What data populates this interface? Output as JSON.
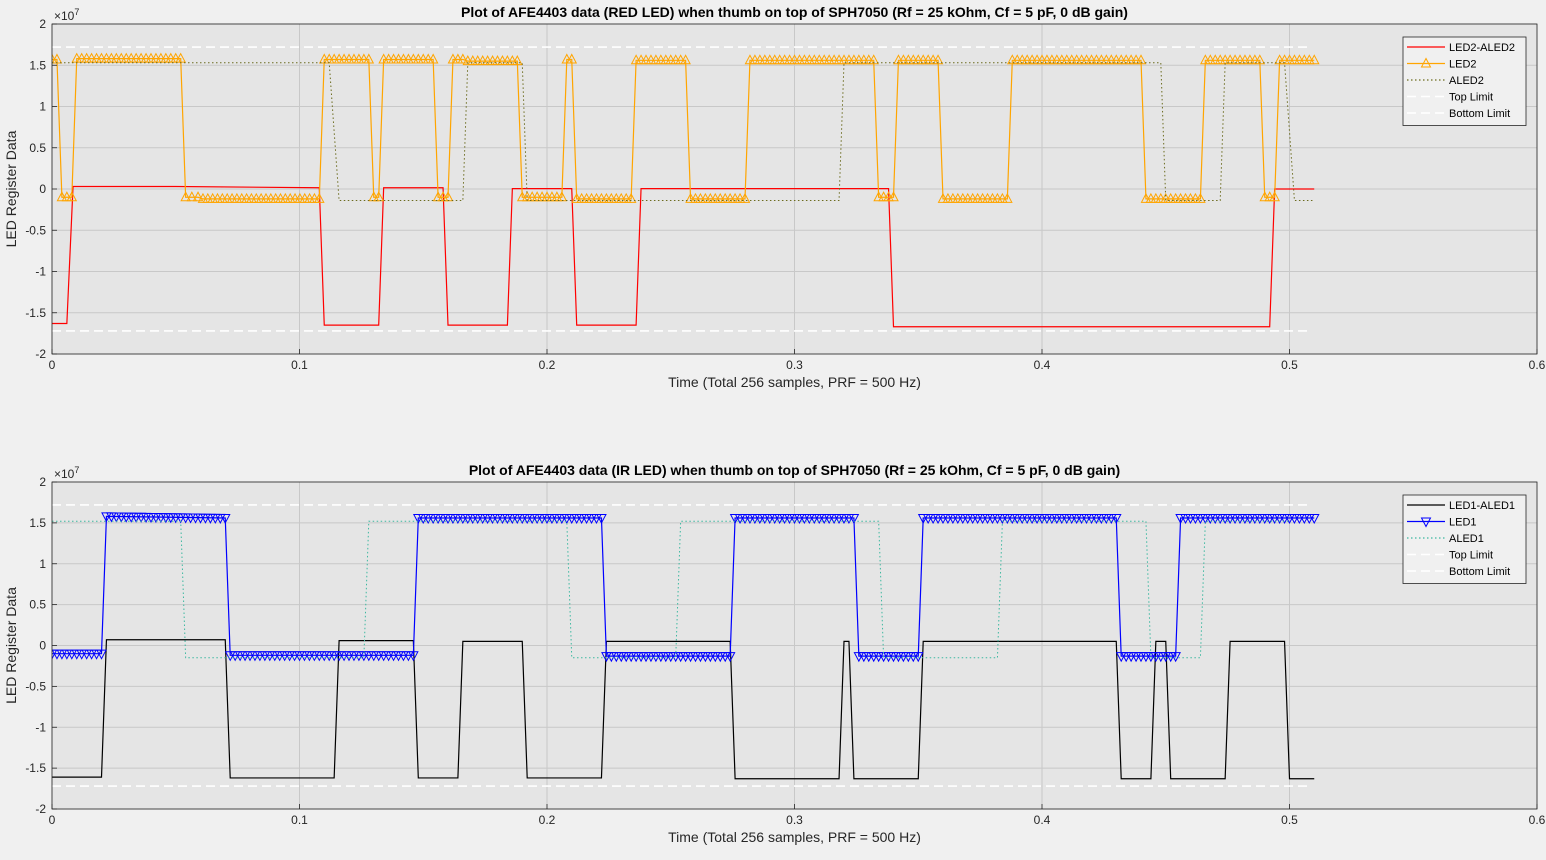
{
  "figure": {
    "background": "#f0f0f0",
    "axes_background": "#e5e5e5"
  },
  "chart_data": [
    {
      "type": "line",
      "title": "Plot of AFE4403 data (RED LED) when thumb on top of SPH7050 (Rf = 25 kOhm, Cf = 5 pF, 0 dB gain)",
      "xlabel": "Time (Total 256 samples, PRF = 500 Hz)",
      "ylabel": "LED Register Data",
      "exponent_label": "×10",
      "exponent_power": "7",
      "xlim": [
        0,
        0.6
      ],
      "ylim": [
        -2,
        2
      ],
      "x_ticks": [
        0,
        0.1,
        0.2,
        0.3,
        0.4,
        0.5,
        0.6
      ],
      "x_tick_labels": [
        "0",
        "0.1",
        "0.2",
        "0.3",
        "0.4",
        "0.5",
        "0.6"
      ],
      "y_ticks": [
        -2,
        -1.5,
        -1,
        -0.5,
        0,
        0.5,
        1,
        1.5,
        2
      ],
      "y_tick_labels": [
        "-2",
        "-1.5",
        "-1",
        "-0.5",
        "0",
        "0.5",
        "1",
        "1.5",
        "2"
      ],
      "grid": true,
      "legend_position": "top-right",
      "series": [
        {
          "name": "LED2-ALED2",
          "color": "#ff0000",
          "style": "solid",
          "marker": "none",
          "points": [
            [
              0,
              -1.63
            ],
            [
              0.006,
              -1.63
            ],
            [
              0.0085,
              0.03
            ],
            [
              0.05,
              0.03
            ],
            [
              0.108,
              0.015
            ],
            [
              0.11,
              -1.65
            ],
            [
              0.132,
              -1.65
            ],
            [
              0.134,
              0.015
            ],
            [
              0.158,
              0.015
            ],
            [
              0.16,
              -1.65
            ],
            [
              0.184,
              -1.65
            ],
            [
              0.186,
              0.005
            ],
            [
              0.21,
              0.005
            ],
            [
              0.212,
              -1.65
            ],
            [
              0.236,
              -1.65
            ],
            [
              0.238,
              0.005
            ],
            [
              0.338,
              0.005
            ],
            [
              0.34,
              -1.67
            ],
            [
              0.492,
              -1.67
            ],
            [
              0.494,
              0.0
            ],
            [
              0.51,
              0.0
            ]
          ]
        },
        {
          "name": "LED2",
          "color": "#ffa500",
          "style": "solid",
          "marker": "triangle-up",
          "points": [
            [
              0,
              1.57
            ],
            [
              0.002,
              1.57
            ],
            [
              0.004,
              -0.1
            ],
            [
              0.008,
              -0.1
            ],
            [
              0.01,
              1.58
            ],
            [
              0.052,
              1.58
            ],
            [
              0.054,
              -0.1
            ],
            [
              0.059,
              -0.1
            ],
            [
              0.061,
              -0.12
            ],
            [
              0.108,
              -0.12
            ],
            [
              0.11,
              1.57
            ],
            [
              0.128,
              1.57
            ],
            [
              0.13,
              -0.1
            ],
            [
              0.132,
              -0.1
            ],
            [
              0.134,
              1.57
            ],
            [
              0.154,
              1.57
            ],
            [
              0.156,
              -0.1
            ],
            [
              0.16,
              -0.1
            ],
            [
              0.162,
              1.57
            ],
            [
              0.166,
              1.57
            ],
            [
              0.168,
              1.55
            ],
            [
              0.188,
              1.55
            ],
            [
              0.19,
              -0.1
            ],
            [
              0.206,
              -0.1
            ],
            [
              0.208,
              1.57
            ],
            [
              0.21,
              1.57
            ],
            [
              0.212,
              -0.12
            ],
            [
              0.234,
              -0.12
            ],
            [
              0.236,
              1.56
            ],
            [
              0.256,
              1.56
            ],
            [
              0.258,
              -0.12
            ],
            [
              0.28,
              -0.12
            ],
            [
              0.282,
              1.56
            ],
            [
              0.332,
              1.56
            ],
            [
              0.334,
              -0.1
            ],
            [
              0.34,
              -0.1
            ],
            [
              0.342,
              1.56
            ],
            [
              0.358,
              1.56
            ],
            [
              0.36,
              -0.12
            ],
            [
              0.386,
              -0.12
            ],
            [
              0.388,
              1.56
            ],
            [
              0.44,
              1.56
            ],
            [
              0.442,
              -0.12
            ],
            [
              0.464,
              -0.12
            ],
            [
              0.466,
              1.56
            ],
            [
              0.488,
              1.56
            ],
            [
              0.49,
              -0.1
            ],
            [
              0.494,
              -0.1
            ],
            [
              0.496,
              1.56
            ],
            [
              0.51,
              1.56
            ]
          ]
        },
        {
          "name": "ALED2",
          "color": "#6b6b1e",
          "style": "dotted",
          "marker": "none",
          "points": [
            [
              0,
              1.53
            ],
            [
              0.112,
              1.53
            ],
            [
              0.116,
              -0.14
            ],
            [
              0.166,
              -0.14
            ],
            [
              0.168,
              1.53
            ],
            [
              0.19,
              1.53
            ],
            [
              0.192,
              -0.14
            ],
            [
              0.318,
              -0.14
            ],
            [
              0.32,
              1.53
            ],
            [
              0.448,
              1.53
            ],
            [
              0.45,
              -0.14
            ],
            [
              0.472,
              -0.14
            ],
            [
              0.474,
              1.53
            ],
            [
              0.498,
              1.53
            ],
            [
              0.502,
              -0.14
            ],
            [
              0.51,
              -0.14
            ]
          ]
        },
        {
          "name": "Top Limit",
          "color": "#ffffff",
          "style": "dashed",
          "marker": "none",
          "points": [
            [
              0,
              1.72
            ],
            [
              0.508,
              1.72
            ]
          ]
        },
        {
          "name": "Bottom Limit",
          "color": "#ffffff",
          "style": "dashed",
          "marker": "none",
          "points": [
            [
              0,
              -1.72
            ],
            [
              0.508,
              -1.72
            ]
          ]
        }
      ]
    },
    {
      "type": "line",
      "title": "Plot of AFE4403 data (IR LED) when thumb on top of SPH7050 (Rf = 25 kOhm, Cf = 5 pF, 0 dB gain)",
      "xlabel": "Time (Total 256 samples, PRF = 500 Hz)",
      "ylabel": "LED Register Data",
      "exponent_label": "×10",
      "exponent_power": "7",
      "xlim": [
        0,
        0.6
      ],
      "ylim": [
        -2,
        2
      ],
      "x_ticks": [
        0,
        0.1,
        0.2,
        0.3,
        0.4,
        0.5,
        0.6
      ],
      "x_tick_labels": [
        "0",
        "0.1",
        "0.2",
        "0.3",
        "0.4",
        "0.5",
        "0.6"
      ],
      "y_ticks": [
        -2,
        -1.5,
        -1,
        -0.5,
        0,
        0.5,
        1,
        1.5,
        2
      ],
      "y_tick_labels": [
        "-2",
        "-1.5",
        "-1",
        "-0.5",
        "0",
        "0.5",
        "1",
        "1.5",
        "2"
      ],
      "grid": true,
      "legend_position": "top-right",
      "series": [
        {
          "name": "LED1-ALED1",
          "color": "#000000",
          "style": "solid",
          "marker": "none",
          "points": [
            [
              0,
              -1.61
            ],
            [
              0.02,
              -1.61
            ],
            [
              0.022,
              0.07
            ],
            [
              0.07,
              0.07
            ],
            [
              0.072,
              -1.62
            ],
            [
              0.114,
              -1.62
            ],
            [
              0.116,
              0.06
            ],
            [
              0.146,
              0.06
            ],
            [
              0.148,
              -1.62
            ],
            [
              0.164,
              -1.62
            ],
            [
              0.166,
              0.05
            ],
            [
              0.19,
              0.05
            ],
            [
              0.192,
              -1.62
            ],
            [
              0.222,
              -1.62
            ],
            [
              0.224,
              0.05
            ],
            [
              0.274,
              0.05
            ],
            [
              0.276,
              -1.63
            ],
            [
              0.318,
              -1.63
            ],
            [
              0.32,
              0.05
            ],
            [
              0.322,
              0.05
            ],
            [
              0.324,
              -1.63
            ],
            [
              0.35,
              -1.63
            ],
            [
              0.352,
              0.05
            ],
            [
              0.43,
              0.05
            ],
            [
              0.432,
              -1.63
            ],
            [
              0.444,
              -1.63
            ],
            [
              0.446,
              0.05
            ],
            [
              0.45,
              0.05
            ],
            [
              0.452,
              -1.63
            ],
            [
              0.474,
              -1.63
            ],
            [
              0.476,
              0.05
            ],
            [
              0.498,
              0.05
            ],
            [
              0.5,
              -1.63
            ],
            [
              0.51,
              -1.63
            ]
          ]
        },
        {
          "name": "LED1",
          "color": "#0000ff",
          "style": "solid",
          "marker": "triangle-down",
          "points": [
            [
              0,
              -0.1
            ],
            [
              0.02,
              -0.1
            ],
            [
              0.022,
              1.58
            ],
            [
              0.07,
              1.56
            ],
            [
              0.072,
              -0.12
            ],
            [
              0.146,
              -0.12
            ],
            [
              0.148,
              1.56
            ],
            [
              0.222,
              1.56
            ],
            [
              0.224,
              -0.13
            ],
            [
              0.274,
              -0.13
            ],
            [
              0.276,
              1.56
            ],
            [
              0.324,
              1.56
            ],
            [
              0.326,
              -0.13
            ],
            [
              0.35,
              -0.13
            ],
            [
              0.352,
              1.56
            ],
            [
              0.43,
              1.56
            ],
            [
              0.432,
              -0.13
            ],
            [
              0.454,
              -0.13
            ],
            [
              0.456,
              1.56
            ],
            [
              0.51,
              1.56
            ]
          ]
        },
        {
          "name": "ALED1",
          "color": "#3cb8a0",
          "style": "dotted",
          "marker": "none",
          "points": [
            [
              0,
              1.52
            ],
            [
              0.052,
              1.52
            ],
            [
              0.054,
              -0.15
            ],
            [
              0.126,
              -0.15
            ],
            [
              0.128,
              1.52
            ],
            [
              0.208,
              1.52
            ],
            [
              0.21,
              -0.15
            ],
            [
              0.252,
              -0.15
            ],
            [
              0.254,
              1.52
            ],
            [
              0.334,
              1.52
            ],
            [
              0.336,
              -0.15
            ],
            [
              0.382,
              -0.15
            ],
            [
              0.384,
              1.52
            ],
            [
              0.442,
              1.52
            ],
            [
              0.444,
              -0.15
            ],
            [
              0.464,
              -0.15
            ],
            [
              0.466,
              1.52
            ],
            [
              0.5,
              1.52
            ]
          ]
        },
        {
          "name": "Top Limit",
          "color": "#ffffff",
          "style": "dashed",
          "marker": "none",
          "points": [
            [
              0,
              1.72
            ],
            [
              0.508,
              1.72
            ]
          ]
        },
        {
          "name": "Bottom Limit",
          "color": "#ffffff",
          "style": "dashed",
          "marker": "none",
          "points": [
            [
              0,
              -1.72
            ],
            [
              0.508,
              -1.72
            ]
          ]
        }
      ]
    }
  ]
}
